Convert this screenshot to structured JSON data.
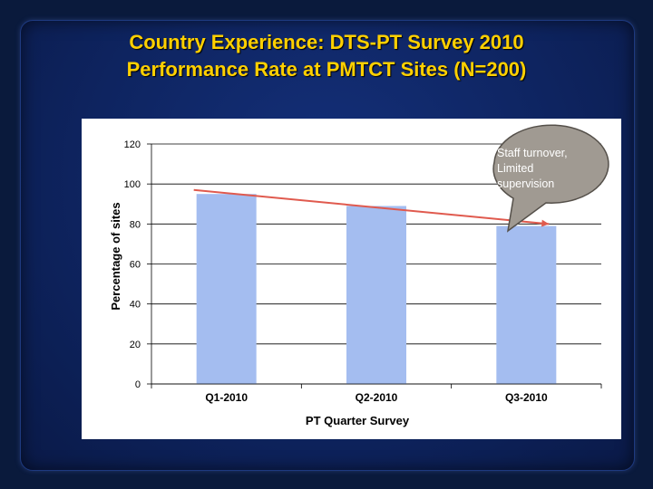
{
  "slide": {
    "title_line1": "Country Experience: DTS-PT Survey 2010",
    "title_line2": "Performance Rate at PMTCT Sites (N=200)"
  },
  "colors": {
    "background": "#0e2460",
    "title": "#ffd000",
    "bar": "#a4bdf0",
    "trendline": "#e05a4e",
    "callout": "#a09a92"
  },
  "chart_data": {
    "type": "bar",
    "categories": [
      "Q1-2010",
      "Q2-2010",
      "Q3-2010"
    ],
    "values": [
      95,
      89,
      79
    ],
    "xlabel": "PT Quarter Survey",
    "ylabel": "Percentage of sites",
    "ylim": [
      0,
      120
    ],
    "yticks": [
      0,
      20,
      40,
      60,
      80,
      100,
      120
    ],
    "grid": true,
    "trendline": {
      "from": 97,
      "to": 80
    },
    "annotation": {
      "text_lines": [
        "Staff turnover,",
        "Limited",
        "supervision"
      ]
    }
  }
}
